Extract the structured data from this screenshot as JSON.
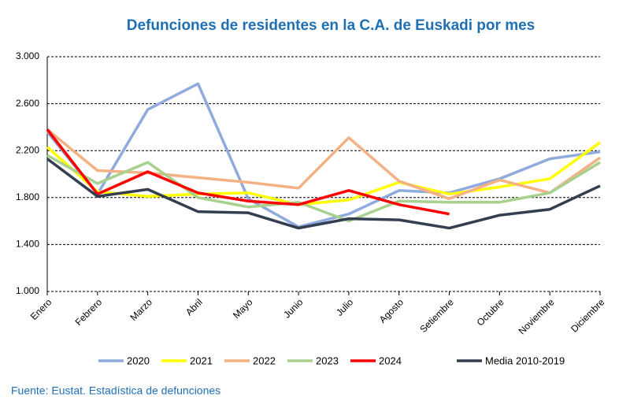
{
  "chart_data": {
    "type": "line",
    "title": "Defunciones de residentes en la C.A. de Euskadi por mes",
    "source": "Fuente: Eustat. Estadística de defunciones",
    "categories": [
      "Enero",
      "Febrero",
      "Marzo",
      "Abril",
      "Mayo",
      "Junio",
      "Julio",
      "Agosto",
      "Setiembre",
      "Octubre",
      "Noviembre",
      "Diciembre"
    ],
    "series": [
      {
        "name": "2020",
        "color": "#8faadc",
        "values": [
          2360,
          1830,
          2550,
          2770,
          1790,
          1550,
          1660,
          1860,
          1840,
          1960,
          2130,
          2190
        ]
      },
      {
        "name": "2021",
        "color": "#ffff00",
        "values": [
          2230,
          1850,
          1810,
          1830,
          1840,
          1740,
          1780,
          1930,
          1830,
          1890,
          1960,
          2270
        ]
      },
      {
        "name": "2022",
        "color": "#f4b183",
        "values": [
          2380,
          2030,
          2010,
          1970,
          1930,
          1880,
          2310,
          1940,
          1790,
          1950,
          1840,
          2140
        ]
      },
      {
        "name": "2023",
        "color": "#a9d18e",
        "values": [
          2160,
          1920,
          2100,
          1800,
          1720,
          1760,
          1600,
          1770,
          1760,
          1760,
          1840,
          2100
        ]
      },
      {
        "name": "2024",
        "color": "#ff0000",
        "values": [
          2380,
          1830,
          2020,
          1840,
          1770,
          1740,
          1860,
          1740,
          1660,
          null,
          null,
          null
        ]
      },
      {
        "name": "Media 2010-2019",
        "color": "#333f50",
        "values": [
          2130,
          1810,
          1870,
          1680,
          1670,
          1540,
          1620,
          1610,
          1540,
          1650,
          1700,
          1900
        ]
      }
    ],
    "ylim": [
      1000,
      3000
    ],
    "yticks": [
      {
        "value": 1000,
        "label": "1.000"
      },
      {
        "value": 1400,
        "label": "1.400"
      },
      {
        "value": 1800,
        "label": "1.800"
      },
      {
        "value": 2200,
        "label": "2.200"
      },
      {
        "value": 2600,
        "label": "2.600"
      },
      {
        "value": 3000,
        "label": "3.000"
      }
    ],
    "grid": true,
    "legend": "bottom"
  }
}
